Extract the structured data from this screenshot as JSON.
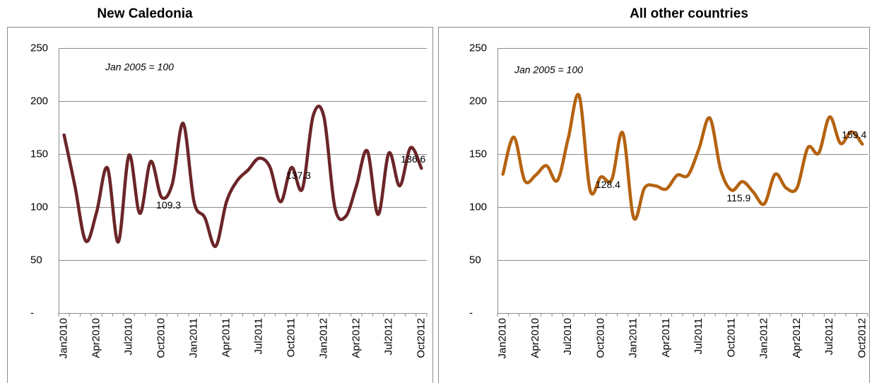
{
  "chart_data": [
    {
      "type": "line",
      "title": "New Caledonia",
      "subtitle": "Jan 2005 = 100",
      "categories": [
        "Jan2010",
        null,
        null,
        "Apr2010",
        null,
        null,
        "Jul2010",
        null,
        null,
        "Oct2010",
        null,
        null,
        "Jan2011",
        null,
        null,
        "Apr2011",
        null,
        null,
        "Jul2011",
        null,
        null,
        "Oct2011",
        null,
        null,
        "Jan2012",
        null,
        null,
        "Apr2012",
        null,
        null,
        "Jul2012",
        null,
        null,
        "Oct2012"
      ],
      "series": [
        {
          "name": "New Caledonia",
          "color": "#6b2528",
          "values": [
            168,
            120,
            68,
            95,
            137,
            67,
            149,
            94,
            143,
            109.3,
            122,
            179,
            105,
            90,
            63,
            105,
            125,
            135,
            146,
            138,
            105,
            137.3,
            117,
            186,
            185,
            100,
            91,
            120,
            153,
            93,
            151,
            120,
            156,
            136.6
          ],
          "value_labels": [
            null,
            null,
            null,
            null,
            null,
            null,
            null,
            null,
            null,
            "109.3",
            null,
            null,
            null,
            null,
            null,
            null,
            null,
            null,
            null,
            null,
            null,
            "137.3",
            null,
            null,
            null,
            null,
            null,
            null,
            null,
            null,
            null,
            null,
            null,
            "136.6"
          ]
        }
      ],
      "ylim": [
        0,
        250
      ],
      "yticks": [
        {
          "value": 0,
          "label": "-"
        },
        50,
        100,
        150,
        200,
        250
      ],
      "grid": true
    },
    {
      "type": "line",
      "title": "All other countries",
      "subtitle": "Jan 2005 = 100",
      "categories": [
        "Jan2010",
        null,
        null,
        "Apr2010",
        null,
        null,
        "Jul2010",
        null,
        null,
        "Oct2010",
        null,
        null,
        "Jan2011",
        null,
        null,
        "Apr2011",
        null,
        null,
        "Jul2011",
        null,
        null,
        "Oct2011",
        null,
        null,
        "Jan2012",
        null,
        null,
        "Apr2012",
        null,
        null,
        "Jul2012",
        null,
        null,
        "Oct2012"
      ],
      "series": [
        {
          "name": "All other countries",
          "color": "#b5620f",
          "values": [
            131,
            166,
            125,
            130,
            139,
            125,
            165,
            205,
            116,
            128.4,
            126,
            170,
            90,
            118,
            120,
            117,
            130,
            130,
            155,
            184,
            135,
            115.9,
            124,
            114,
            103,
            131,
            118,
            118,
            156,
            151,
            185,
            160,
            171,
            159.4
          ],
          "value_labels": [
            null,
            null,
            null,
            null,
            null,
            null,
            null,
            null,
            null,
            "128.4",
            null,
            null,
            null,
            null,
            null,
            null,
            null,
            null,
            null,
            null,
            null,
            "115.9",
            null,
            null,
            null,
            null,
            null,
            null,
            null,
            null,
            null,
            null,
            null,
            "159.4"
          ]
        }
      ],
      "ylim": [
        0,
        250
      ],
      "yticks": [
        {
          "value": 0,
          "label": "-"
        },
        50,
        100,
        150,
        200,
        250
      ],
      "grid": true
    }
  ]
}
